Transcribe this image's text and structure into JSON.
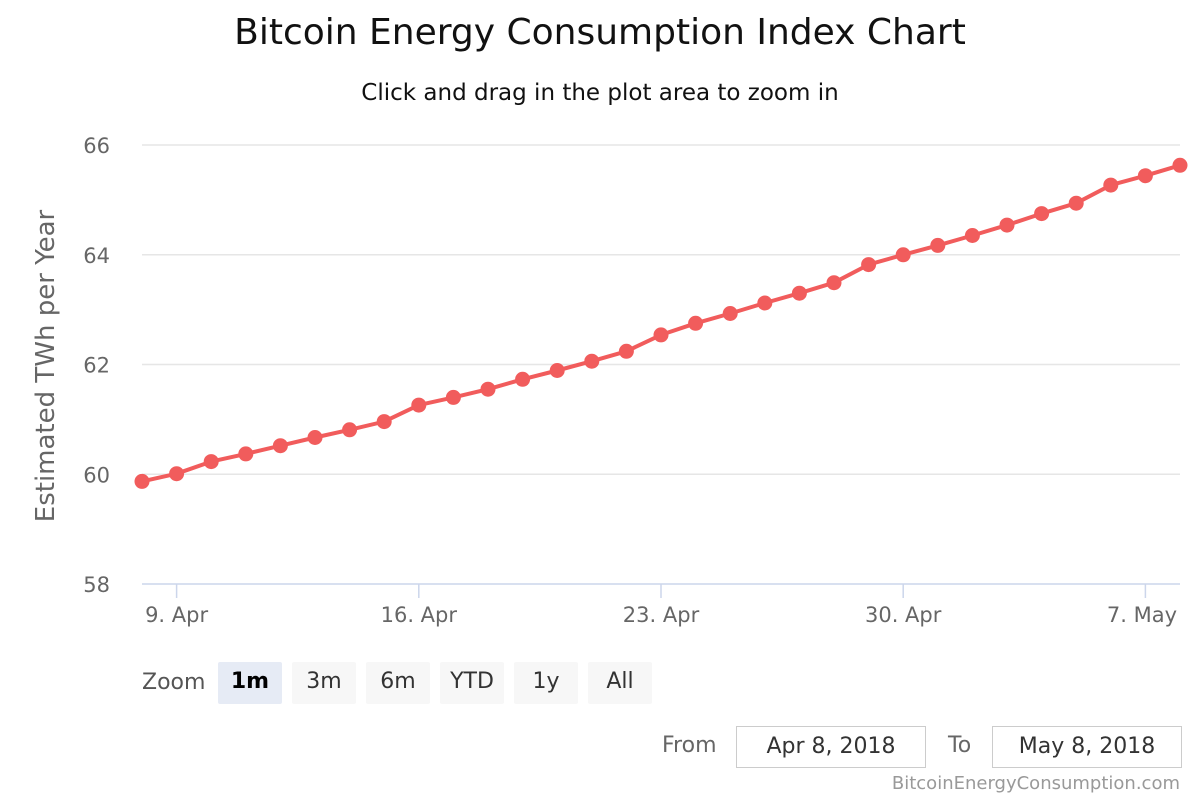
{
  "chart_data": {
    "type": "line",
    "title": "Bitcoin Energy Consumption Index Chart",
    "subtitle": "Click and drag in the plot area to zoom in",
    "ylabel": "Estimated TWh per Year",
    "xlabel": "",
    "ylim": [
      58,
      66
    ],
    "y_ticks": [
      "58",
      "60",
      "62",
      "64",
      "66"
    ],
    "x_ticks": [
      "9. Apr",
      "16. Apr",
      "23. Apr",
      "30. Apr",
      "7. May"
    ],
    "x": [
      "2018-04-08",
      "2018-04-09",
      "2018-04-10",
      "2018-04-11",
      "2018-04-12",
      "2018-04-13",
      "2018-04-14",
      "2018-04-15",
      "2018-04-16",
      "2018-04-17",
      "2018-04-18",
      "2018-04-19",
      "2018-04-20",
      "2018-04-21",
      "2018-04-22",
      "2018-04-23",
      "2018-04-24",
      "2018-04-25",
      "2018-04-26",
      "2018-04-27",
      "2018-04-28",
      "2018-04-29",
      "2018-04-30",
      "2018-05-01",
      "2018-05-02",
      "2018-05-03",
      "2018-05-04",
      "2018-05-05",
      "2018-05-06",
      "2018-05-07",
      "2018-05-08"
    ],
    "series": [
      {
        "values": [
          59.87,
          60.01,
          60.23,
          60.37,
          60.52,
          60.67,
          60.81,
          60.96,
          61.26,
          61.4,
          61.55,
          61.73,
          61.89,
          62.06,
          62.24,
          62.54,
          62.75,
          62.93,
          63.12,
          63.3,
          63.49,
          63.82,
          64.0,
          64.17,
          64.35,
          64.54,
          64.75,
          64.94,
          65.27,
          65.44,
          65.63
        ],
        "color": "#f15c5c"
      }
    ],
    "grid": true,
    "legend": "none"
  },
  "range_selector": {
    "zoom_label": "Zoom",
    "buttons": [
      "1m",
      "3m",
      "6m",
      "YTD",
      "1y",
      "All"
    ],
    "selected": "1m",
    "from_label": "From",
    "from_value": "Apr 8, 2018",
    "to_label": "To",
    "to_value": "May 8, 2018"
  },
  "credit": "BitcoinEnergyConsumption.com",
  "colors": {
    "series": "#f15c5c",
    "grid": "#e6e6e6",
    "axis": "#ccd6eb"
  }
}
